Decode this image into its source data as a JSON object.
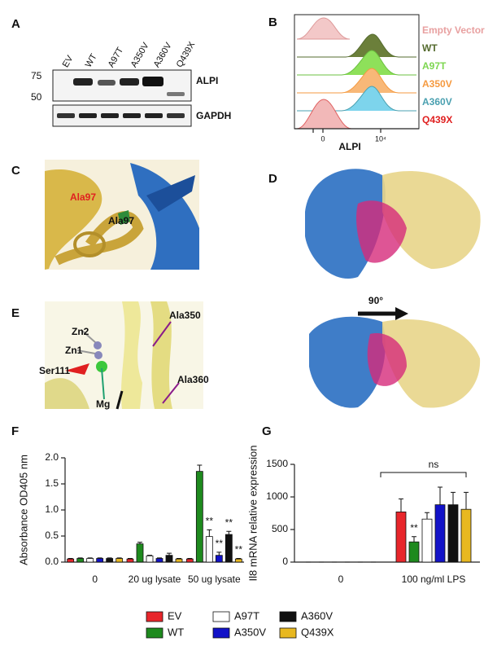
{
  "panels": {
    "A": {
      "label": "A",
      "lanes": [
        "EV",
        "WT",
        "A97T",
        "A350V",
        "A360V",
        "Q439X"
      ],
      "markers": [
        "75",
        "50"
      ],
      "blots": [
        "ALPI",
        "GAPDH"
      ]
    },
    "B": {
      "label": "B",
      "samples": [
        "Empty Vector",
        "WT",
        "A97T",
        "A350V",
        "A360V",
        "Q439X"
      ],
      "xlabel": "ALPI",
      "xticks": [
        "0",
        "10⁴"
      ]
    },
    "C": {
      "label": "C",
      "labels": [
        "Ala97",
        "Ala97"
      ]
    },
    "D": {
      "label": "D",
      "rotation": "90°"
    },
    "E": {
      "label": "E",
      "labels": [
        "Zn2",
        "Zn1",
        "Ser111",
        "Mg",
        "Ala350",
        "Ala360"
      ]
    },
    "F": {
      "label": "F"
    },
    "G": {
      "label": "G"
    }
  },
  "chart_data": [
    {
      "type": "bar",
      "ylabel": "Absorbance OD405 nm",
      "categories": [
        "0",
        "20 ug lysate",
        "50 ug lysate"
      ],
      "series": [
        {
          "name": "EV",
          "color": "#e8262b",
          "values": [
            0.06,
            0.06,
            0.06
          ],
          "errors": [
            0.01,
            0.01,
            0.01
          ]
        },
        {
          "name": "WT",
          "color": "#1e8a1e",
          "values": [
            0.07,
            0.35,
            1.74
          ],
          "errors": [
            0.01,
            0.03,
            0.12
          ]
        },
        {
          "name": "A97T",
          "color": "#ffffff",
          "values": [
            0.07,
            0.12,
            0.49
          ],
          "errors": [
            0.01,
            0.01,
            0.13
          ]
        },
        {
          "name": "A350V",
          "color": "#1212c8",
          "values": [
            0.07,
            0.07,
            0.13
          ],
          "errors": [
            0.01,
            0.01,
            0.06
          ]
        },
        {
          "name": "A360V",
          "color": "#111111",
          "values": [
            0.07,
            0.13,
            0.53
          ],
          "errors": [
            0.01,
            0.04,
            0.06
          ]
        },
        {
          "name": "Q439X",
          "color": "#e8b820",
          "values": [
            0.07,
            0.06,
            0.06
          ],
          "errors": [
            0.01,
            0.01,
            0.01
          ]
        }
      ],
      "ylim": [
        0,
        2.0
      ],
      "yticks": [
        {
          "value": 0,
          "label": "0.0"
        },
        0.5,
        {
          "value": 1,
          "label": "1.0"
        },
        1.5,
        {
          "value": 2,
          "label": "2.0"
        }
      ],
      "annotations": [
        {
          "text": "**",
          "category": 2,
          "series": 2
        },
        {
          "text": "**",
          "category": 2,
          "series": 3
        },
        {
          "text": "**",
          "category": 2,
          "series": 4
        },
        {
          "text": "**",
          "category": 2,
          "series": 5
        }
      ]
    },
    {
      "type": "bar",
      "ylabel": "Il8 mRNA relative expression",
      "categories": [
        "0",
        "100 ng/ml  LPS"
      ],
      "series": [
        {
          "color": "#e8262b",
          "values": [
            0,
            770
          ],
          "errors": [
            0,
            200
          ]
        },
        {
          "color": "#1e8a1e",
          "values": [
            0,
            310
          ],
          "errors": [
            0,
            80
          ]
        },
        {
          "color": "#ffffff",
          "values": [
            0,
            660
          ],
          "errors": [
            0,
            100
          ]
        },
        {
          "color": "#1212c8",
          "values": [
            0,
            880
          ],
          "errors": [
            0,
            270
          ]
        },
        {
          "color": "#111111",
          "values": [
            0,
            880
          ],
          "errors": [
            0,
            190
          ]
        },
        {
          "color": "#e8b820",
          "values": [
            0,
            810
          ],
          "errors": [
            0,
            260
          ]
        }
      ],
      "ylim": [
        0,
        1500
      ],
      "yticks": [
        0,
        500,
        1000,
        1500
      ],
      "annotations": [
        {
          "text": "**",
          "category": 1,
          "series": 1
        },
        {
          "text": "ns",
          "category": 1,
          "from_series": 0,
          "to_series": 5
        }
      ]
    }
  ]
}
